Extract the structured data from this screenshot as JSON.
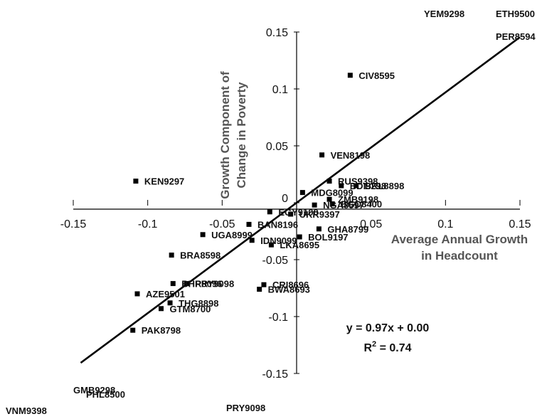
{
  "chart_data": {
    "type": "scatter",
    "title": "",
    "xlabel": [
      "Average Annual Growth",
      "in Headcount"
    ],
    "ylabel": [
      "Growth Component of",
      "Change in Poverty"
    ],
    "xlim": [
      -0.15,
      0.15
    ],
    "ylim": [
      -0.15,
      0.15
    ],
    "x_ticks": [
      "-0.15",
      "-0.1",
      "-0.05",
      "0",
      "0.05",
      "0.1",
      "0.15"
    ],
    "y_ticks": [
      "-0.15",
      "-0.1",
      "-0.05",
      "0",
      "0.05",
      "0.1",
      "0.15"
    ],
    "grid": false,
    "legend": "none",
    "trendline": {
      "slope": 0.97,
      "intercept": 0.0,
      "x_range": [
        -0.145,
        0.15
      ]
    },
    "annotations": {
      "equation": "y = 0.97x + 0.00",
      "r2_prefix": "R",
      "r2_sup": "2",
      "r2_value": " = 0.74"
    },
    "points": [
      {
        "label": "CIV8595",
        "x": 0.036,
        "y": 0.112
      },
      {
        "label": "VEN8198",
        "x": 0.017,
        "y": 0.042
      },
      {
        "label": "KEN9297",
        "x": -0.108,
        "y": 0.019
      },
      {
        "label": "RUS9398",
        "x": 0.022,
        "y": 0.019
      },
      {
        "label": "BDI9298",
        "x": 0.03,
        "y": 0.015
      },
      {
        "label": "BRL8898",
        "x": 0.04,
        "y": 0.015
      },
      {
        "label": "MDG8099",
        "x": 0.004,
        "y": 0.009
      },
      {
        "label": "ZMB9198",
        "x": 0.022,
        "y": 0.003
      },
      {
        "label": "NGA8597",
        "x": 0.012,
        "y": -0.002
      },
      {
        "label": "BGD8400",
        "x": 0.024,
        "y": -0.001
      },
      {
        "label": "EGY9100",
        "x": -0.018,
        "y": -0.008
      },
      {
        "label": "UKR9397",
        "x": -0.004,
        "y": -0.01
      },
      {
        "label": "BAN8196",
        "x": -0.032,
        "y": -0.019
      },
      {
        "label": "GHA8799",
        "x": 0.015,
        "y": -0.023
      },
      {
        "label": "UGA8999",
        "x": -0.063,
        "y": -0.028
      },
      {
        "label": "LKA8695",
        "x": -0.017,
        "y": -0.037
      },
      {
        "label": "BOL9197",
        "x": 0.002,
        "y": -0.03
      },
      {
        "label": "IDN9099",
        "x": -0.03,
        "y": -0.033
      },
      {
        "label": "BRA8598",
        "x": -0.084,
        "y": -0.046
      },
      {
        "label": "PRY9098",
        "x": -0.074,
        "y": -0.071
      },
      {
        "label": "BHR8096",
        "x": -0.083,
        "y": -0.071
      },
      {
        "label": "CRI8696",
        "x": -0.022,
        "y": -0.072
      },
      {
        "label": "BWA8693",
        "x": -0.025,
        "y": -0.076
      },
      {
        "label": "AZE9501",
        "x": -0.107,
        "y": -0.08
      },
      {
        "label": "THG8898",
        "x": -0.085,
        "y": -0.088
      },
      {
        "label": "GTM8700",
        "x": -0.091,
        "y": -0.093
      },
      {
        "label": "PAK8798",
        "x": -0.11,
        "y": -0.112
      }
    ],
    "clipped_labels": [
      {
        "label": "YEM9298"
      },
      {
        "label": "ETH9500"
      },
      {
        "label": "PER8594"
      },
      {
        "label": "GMB9298"
      },
      {
        "label": "PHL8500"
      },
      {
        "label": "VNM9398"
      },
      {
        "label": "PRY9098"
      }
    ]
  }
}
